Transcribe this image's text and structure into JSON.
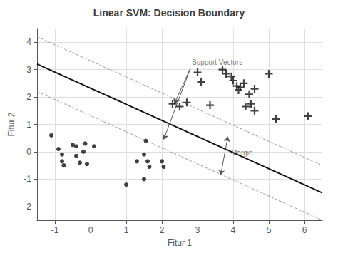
{
  "chart_data": {
    "type": "scatter",
    "title": "Linear SVM: Decision Boundary",
    "xlabel": "Fitur 1",
    "ylabel": "Fitur 2",
    "xlim": [
      -1.5,
      6.5
    ],
    "ylim": [
      -2.5,
      4.5
    ],
    "xticks": [
      -1,
      0,
      1,
      2,
      3,
      4,
      5,
      6
    ],
    "yticks": [
      -2,
      -1,
      0,
      1,
      2,
      3,
      4
    ],
    "grid": true,
    "series": [
      {
        "type": "line",
        "line_style": "solid",
        "color": "#111111",
        "values": [
          [
            -1.5,
            3.2
          ],
          [
            6.5,
            -1.5
          ]
        ]
      },
      {
        "type": "line",
        "line_style": "dashed",
        "color": "#999999",
        "values": [
          [
            -1.5,
            4.2
          ],
          [
            6.5,
            -0.5
          ]
        ]
      },
      {
        "type": "line",
        "line_style": "dashed",
        "color": "#999999",
        "values": [
          [
            -1.5,
            2.2
          ],
          [
            6.5,
            -2.5
          ]
        ]
      },
      {
        "type": "scatter",
        "marker": "circle",
        "color": "#111111",
        "values": [
          [
            -1.1,
            0.6
          ],
          [
            -0.9,
            0.1
          ],
          [
            -0.8,
            -0.1
          ],
          [
            -0.8,
            -0.35
          ],
          [
            -0.75,
            -0.5
          ],
          [
            -0.5,
            0.25
          ],
          [
            -0.4,
            0.2
          ],
          [
            -0.4,
            -0.15
          ],
          [
            -0.3,
            -0.4
          ],
          [
            -0.2,
            0.0
          ],
          [
            -0.15,
            0.3
          ],
          [
            -0.1,
            -0.45
          ],
          [
            0.1,
            0.2
          ],
          [
            1.3,
            -0.35
          ],
          [
            1.5,
            -0.1
          ],
          [
            1.6,
            -0.35
          ],
          [
            1.65,
            -0.55
          ],
          [
            1.55,
            0.4
          ],
          [
            2.0,
            -0.35
          ],
          [
            2.05,
            -0.55
          ],
          [
            1.0,
            -1.2
          ],
          [
            1.5,
            -1.0
          ]
        ]
      },
      {
        "type": "scatter",
        "marker": "plus",
        "color": "#111111",
        "values": [
          [
            2.3,
            1.75
          ],
          [
            2.5,
            1.65
          ],
          [
            2.7,
            1.8
          ],
          [
            3.0,
            2.9
          ],
          [
            3.1,
            2.55
          ],
          [
            3.35,
            1.7
          ],
          [
            3.7,
            3.0
          ],
          [
            3.8,
            2.85
          ],
          [
            3.95,
            2.75
          ],
          [
            4.0,
            2.6
          ],
          [
            4.1,
            2.4
          ],
          [
            4.15,
            2.25
          ],
          [
            4.2,
            2.35
          ],
          [
            4.3,
            2.5
          ],
          [
            4.35,
            1.65
          ],
          [
            4.45,
            2.1
          ],
          [
            4.5,
            1.75
          ],
          [
            4.6,
            1.5
          ],
          [
            4.6,
            2.3
          ],
          [
            5.0,
            2.85
          ],
          [
            5.2,
            1.2
          ],
          [
            6.1,
            1.3
          ]
        ]
      }
    ],
    "annotations": [
      {
        "text": "Support Vectors",
        "xy": [
          2.8,
          3.05
        ],
        "arrows": [
          {
            "from": [
              2.8,
              3.05
            ],
            "to": [
              2.35,
              1.75
            ],
            "style": "->"
          },
          {
            "from": [
              2.8,
              3.05
            ],
            "to": [
              2.05,
              0.45
            ],
            "style": "->"
          }
        ]
      },
      {
        "text": "Margin",
        "xy": [
          3.9,
          -0.05
        ],
        "arrows": [
          {
            "from": [
              3.65,
              -0.85
            ],
            "to": [
              3.85,
              0.55
            ],
            "style": "<->"
          }
        ]
      }
    ]
  }
}
